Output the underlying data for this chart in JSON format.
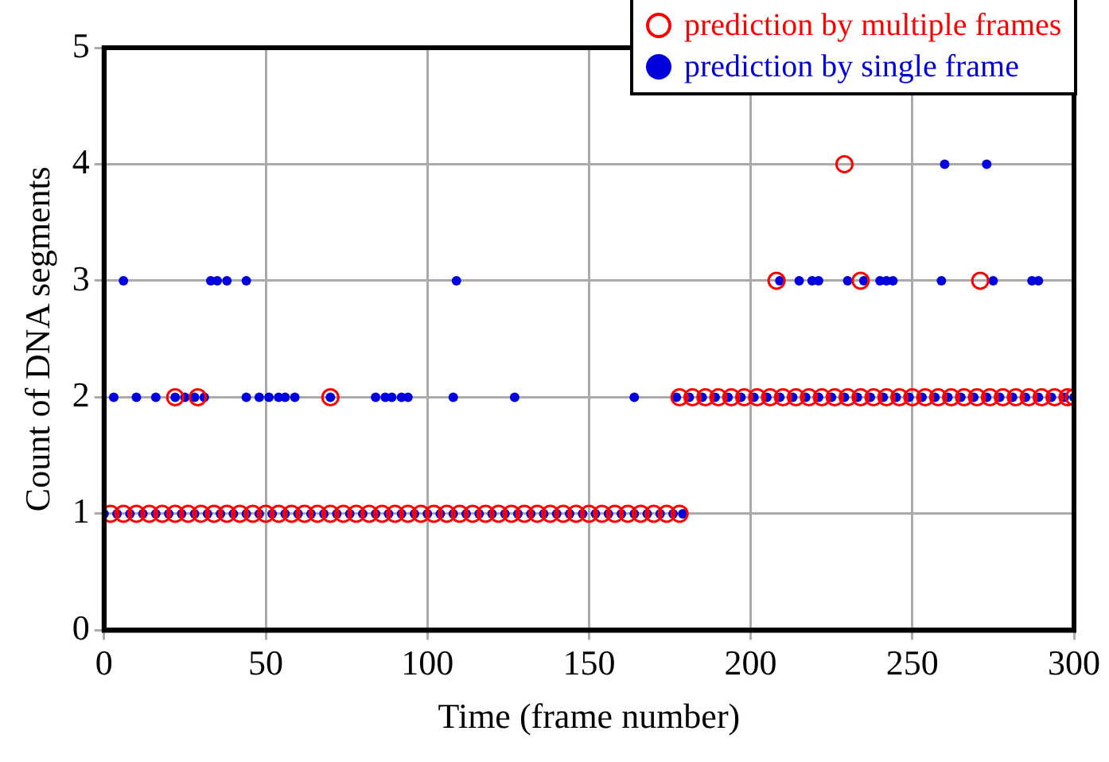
{
  "chart_data": {
    "type": "scatter",
    "xlabel": "Time (frame number)",
    "ylabel": "Count of DNA segments",
    "xlim": [
      0,
      300
    ],
    "xticks": [
      0,
      50,
      100,
      150,
      200,
      250,
      300
    ],
    "ylim": [
      0,
      5
    ],
    "yticks": [
      0,
      1,
      2,
      3,
      4,
      5
    ],
    "grid": true,
    "legend": "top right",
    "marker": "circle",
    "series": [
      {
        "name": "prediction by multiple frames",
        "color": "#ff0000",
        "x": [
          2,
          6,
          10,
          14,
          18,
          22,
          26,
          30,
          34,
          38,
          42,
          46,
          50,
          54,
          58,
          62,
          66,
          70,
          74,
          78,
          82,
          86,
          90,
          94,
          98,
          102,
          106,
          110,
          114,
          118,
          122,
          126,
          130,
          134,
          138,
          142,
          146,
          150,
          154,
          158,
          162,
          166,
          170,
          174,
          178,
          178,
          182,
          186,
          190,
          194,
          198,
          202,
          206,
          210,
          214,
          218,
          222,
          226,
          230,
          234,
          238,
          242,
          246,
          250,
          254,
          258,
          262,
          266,
          270,
          274,
          278,
          282,
          286,
          290,
          294,
          298,
          300,
          22,
          29,
          70,
          208,
          229,
          234,
          271
        ],
        "values": [
          1,
          1,
          1,
          1,
          1,
          1,
          1,
          1,
          1,
          1,
          1,
          1,
          1,
          1,
          1,
          1,
          1,
          1,
          1,
          1,
          1,
          1,
          1,
          1,
          1,
          1,
          1,
          1,
          1,
          1,
          1,
          1,
          1,
          1,
          1,
          1,
          1,
          1,
          1,
          1,
          1,
          1,
          1,
          1,
          1,
          2,
          2,
          2,
          2,
          2,
          2,
          2,
          2,
          2,
          2,
          2,
          2,
          2,
          2,
          2,
          2,
          2,
          2,
          2,
          2,
          2,
          2,
          2,
          2,
          2,
          2,
          2,
          2,
          2,
          2,
          2,
          2,
          2,
          2,
          2,
          3,
          4,
          3,
          3
        ]
      },
      {
        "name": "prediction by single frame",
        "color": "#0000dd",
        "x": [
          0,
          4,
          8,
          12,
          16,
          20,
          24,
          28,
          32,
          36,
          40,
          44,
          48,
          52,
          56,
          60,
          64,
          68,
          72,
          76,
          80,
          84,
          88,
          92,
          96,
          100,
          104,
          108,
          112,
          116,
          120,
          124,
          128,
          132,
          136,
          140,
          144,
          148,
          152,
          156,
          160,
          164,
          168,
          172,
          176,
          179,
          177,
          181,
          185,
          189,
          193,
          197,
          201,
          205,
          209,
          213,
          217,
          221,
          225,
          229,
          233,
          237,
          241,
          245,
          249,
          253,
          257,
          261,
          265,
          269,
          273,
          277,
          281,
          285,
          289,
          293,
          297,
          300,
          3,
          10,
          16,
          22,
          25,
          28,
          31,
          44,
          48,
          51,
          54,
          56,
          59,
          70,
          84,
          87,
          89,
          92,
          94,
          108,
          127,
          164,
          6,
          33,
          35,
          38,
          44,
          109,
          209,
          215,
          219,
          221,
          230,
          235,
          240,
          242,
          244,
          259,
          275,
          287,
          289,
          260,
          273
        ],
        "values": [
          1,
          1,
          1,
          1,
          1,
          1,
          1,
          1,
          1,
          1,
          1,
          1,
          1,
          1,
          1,
          1,
          1,
          1,
          1,
          1,
          1,
          1,
          1,
          1,
          1,
          1,
          1,
          1,
          1,
          1,
          1,
          1,
          1,
          1,
          1,
          1,
          1,
          1,
          1,
          1,
          1,
          1,
          1,
          1,
          1,
          1,
          2,
          2,
          2,
          2,
          2,
          2,
          2,
          2,
          2,
          2,
          2,
          2,
          2,
          2,
          2,
          2,
          2,
          2,
          2,
          2,
          2,
          2,
          2,
          2,
          2,
          2,
          2,
          2,
          2,
          2,
          2,
          2,
          2,
          2,
          2,
          2,
          2,
          2,
          2,
          2,
          2,
          2,
          2,
          2,
          2,
          2,
          2,
          2,
          2,
          2,
          2,
          2,
          2,
          2,
          3,
          3,
          3,
          3,
          3,
          3,
          3,
          3,
          3,
          3,
          3,
          3,
          3,
          3,
          3,
          3,
          3,
          3,
          3,
          4,
          4
        ]
      }
    ]
  }
}
